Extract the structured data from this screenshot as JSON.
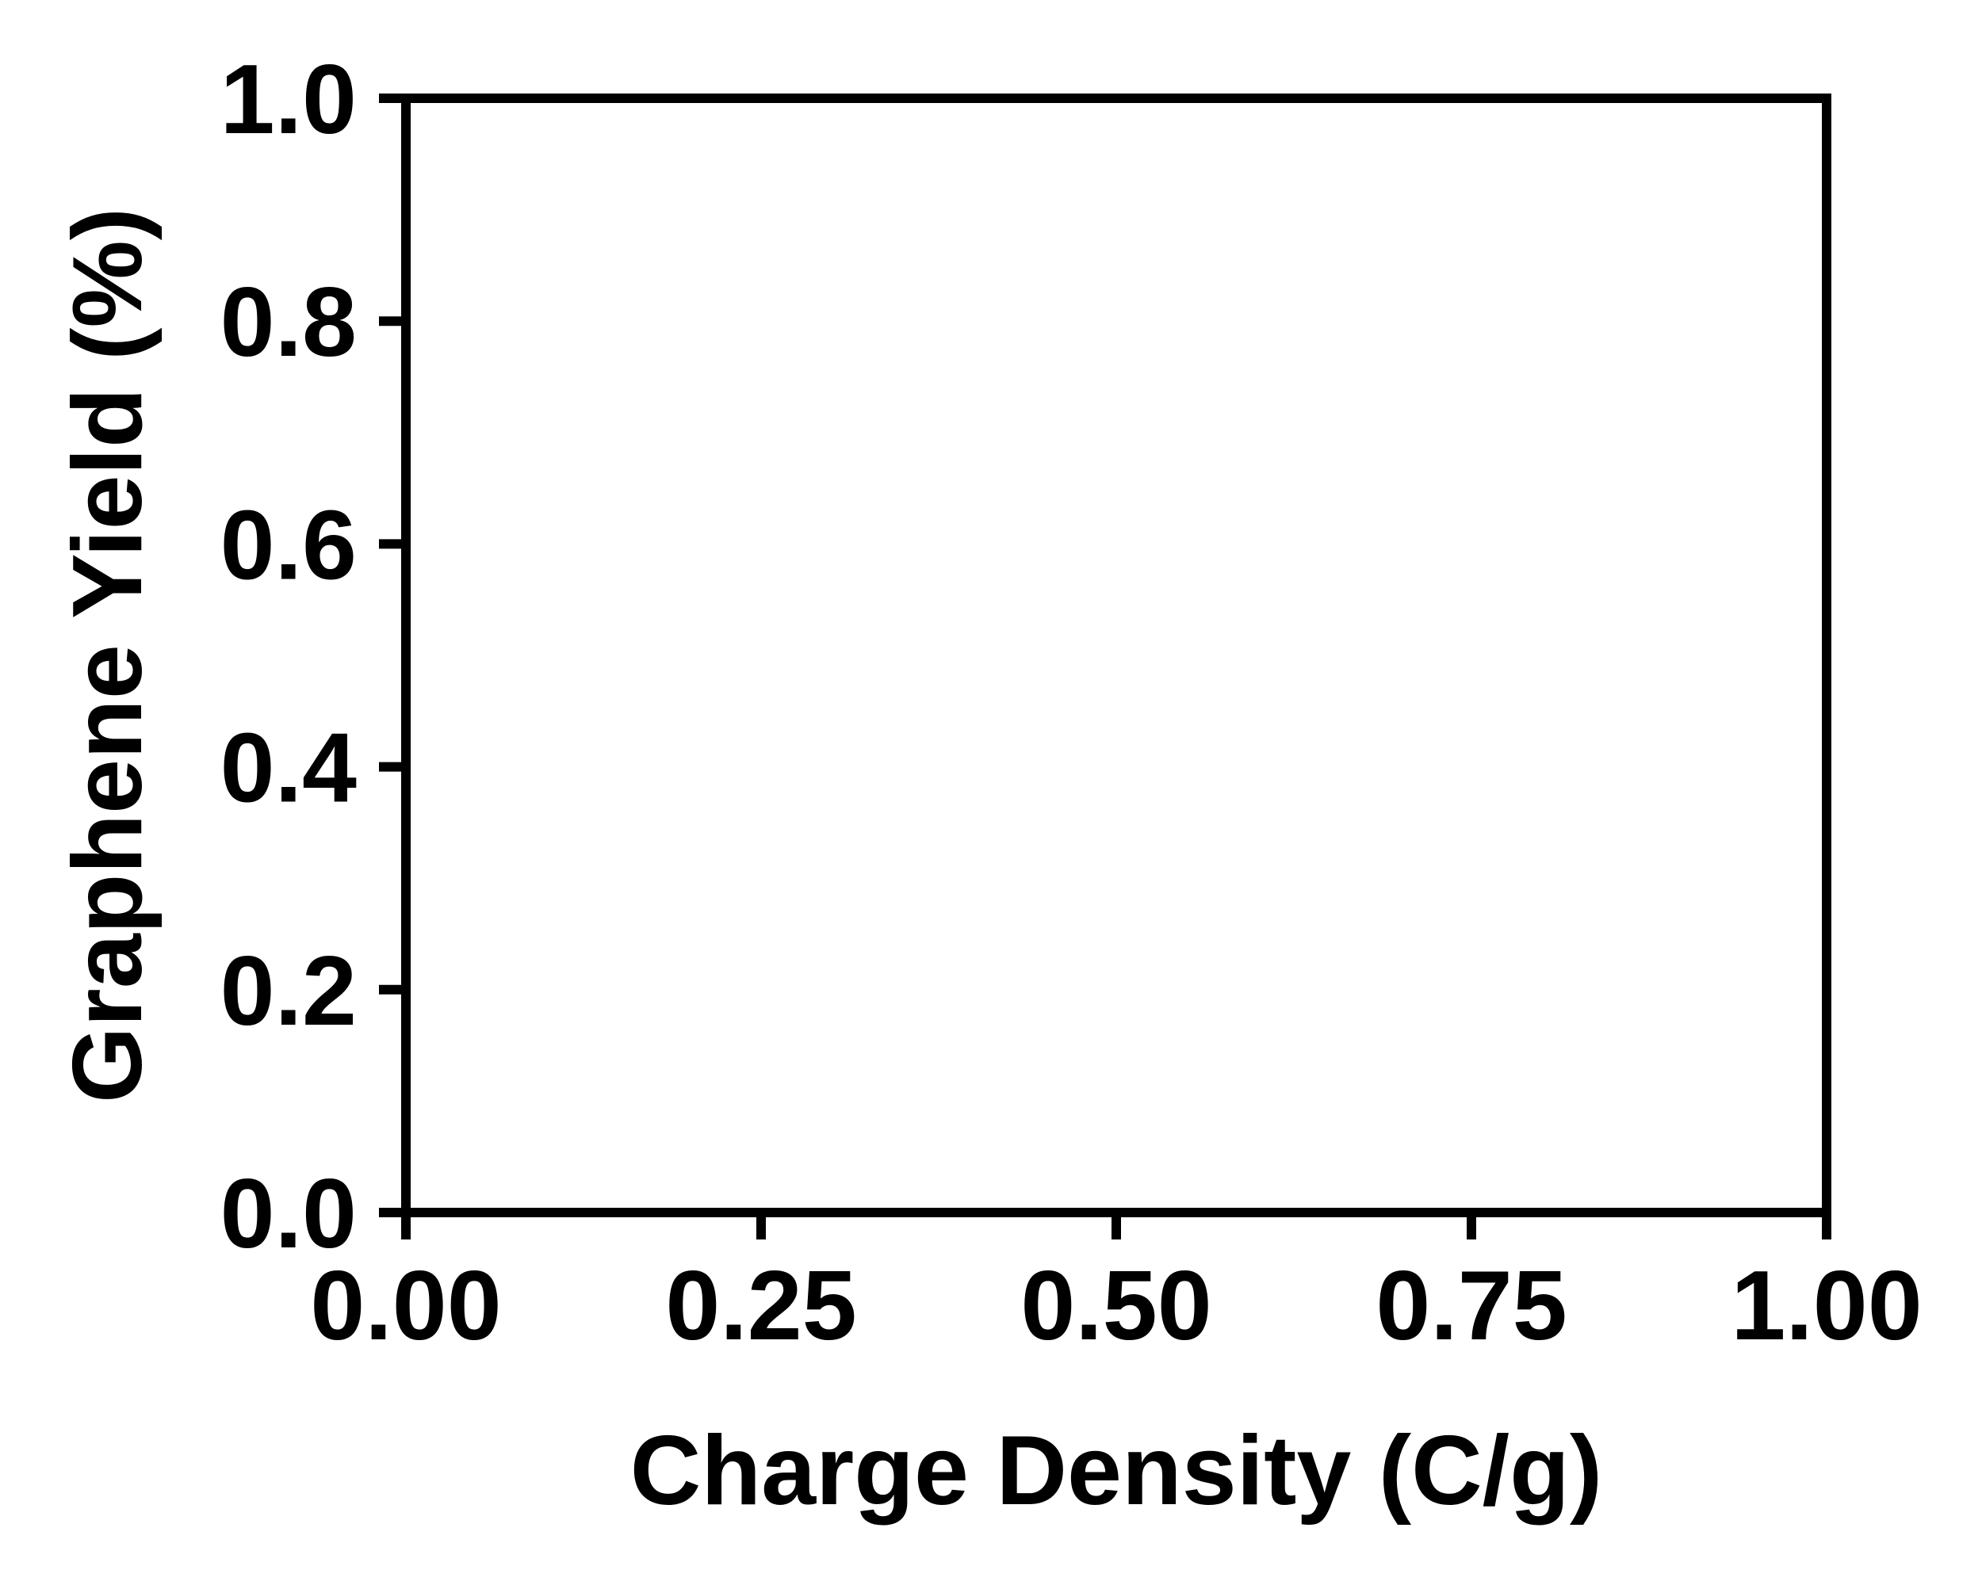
{
  "chart_data": {
    "type": "scatter",
    "title": "",
    "xlabel": "Charge Density (C/g)",
    "ylabel": "Graphene Yield (%)",
    "xlim": [
      0.0,
      1.0
    ],
    "ylim": [
      0.0,
      1.0
    ],
    "x_ticks": [
      "0.00",
      "0.25",
      "0.50",
      "0.75",
      "1.00"
    ],
    "y_ticks": [
      "0.0",
      "0.2",
      "0.4",
      "0.6",
      "0.8",
      "1.0"
    ],
    "grid": false,
    "series": [],
    "colors": {
      "axis": "#000000",
      "background": "#ffffff"
    }
  }
}
